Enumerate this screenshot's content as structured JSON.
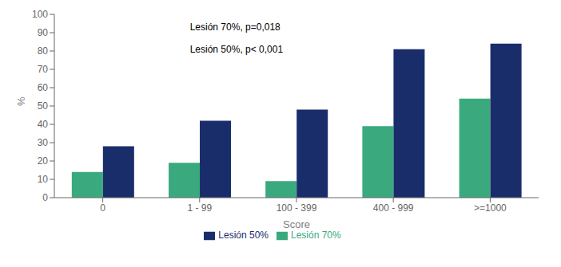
{
  "chart_data": {
    "type": "bar",
    "xlabel": "Score",
    "ylabel": "%",
    "categories": [
      "0",
      "1 - 99",
      "100 - 399",
      "400 - 999",
      ">=1000"
    ],
    "series": [
      {
        "name": "Lesión 70%",
        "color": "#3aaa7e",
        "values": [
          14,
          19,
          9,
          39,
          54
        ]
      },
      {
        "name": "Lesión 50%",
        "color": "#1a2d6b",
        "values": [
          28,
          42,
          48,
          81,
          84
        ]
      }
    ],
    "ylim": [
      0,
      100
    ],
    "yticks": [
      0,
      10,
      20,
      30,
      40,
      50,
      60,
      70,
      80,
      90,
      100
    ],
    "grid": false,
    "legend": "bottom",
    "annotations": [
      "Lesión 70%, p=0,018",
      "Lesión 50%, p< 0,001"
    ]
  }
}
